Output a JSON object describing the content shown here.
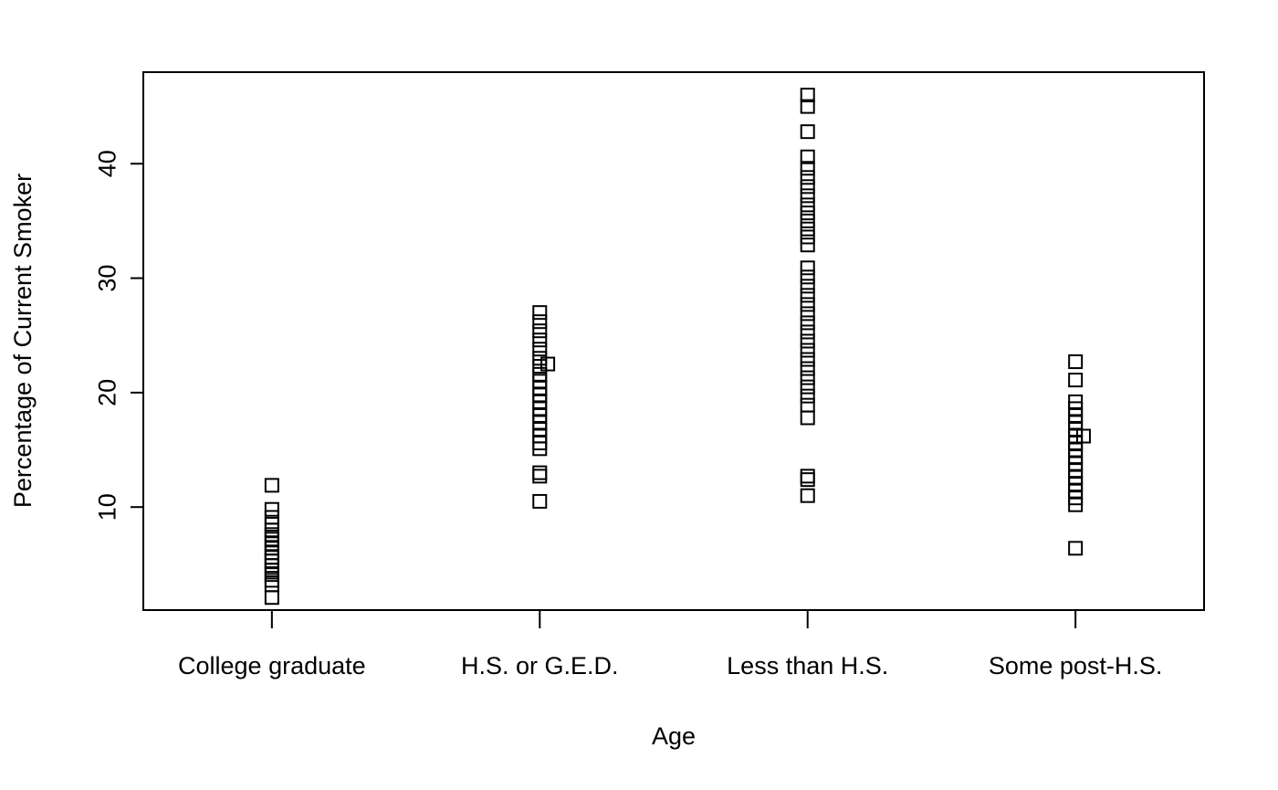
{
  "chart_data": {
    "type": "scatter",
    "xlabel": "Age",
    "ylabel": "Percentage of Current Smoker",
    "categories": [
      "College graduate",
      "H.S. or G.E.D.",
      "Less than H.S.",
      "Some post-H.S."
    ],
    "x_range": [
      0.52,
      4.48
    ],
    "ylim": [
      1.0,
      48.0
    ],
    "yticks": [
      10,
      20,
      30,
      40
    ],
    "grid": false,
    "legend": "none",
    "marker": "open-square",
    "point_color": "#000000",
    "points": [
      {
        "x": 1,
        "y": 2.1
      },
      {
        "x": 1,
        "y": 3.2
      },
      {
        "x": 1,
        "y": 3.6
      },
      {
        "x": 1,
        "y": 4.1
      },
      {
        "x": 1,
        "y": 4.5
      },
      {
        "x": 1,
        "y": 4.9
      },
      {
        "x": 1,
        "y": 5.3
      },
      {
        "x": 1,
        "y": 5.6
      },
      {
        "x": 1,
        "y": 6.0
      },
      {
        "x": 1,
        "y": 6.4
      },
      {
        "x": 1,
        "y": 6.8
      },
      {
        "x": 1,
        "y": 7.2
      },
      {
        "x": 1,
        "y": 7.6
      },
      {
        "x": 1,
        "y": 8.0
      },
      {
        "x": 1,
        "y": 8.5
      },
      {
        "x": 1,
        "y": 9.1
      },
      {
        "x": 1,
        "y": 9.8
      },
      {
        "x": 1,
        "y": 11.9
      },
      {
        "x": 2,
        "y": 10.5
      },
      {
        "x": 2,
        "y": 12.7
      },
      {
        "x": 2,
        "y": 13.0
      },
      {
        "x": 2,
        "y": 15.1
      },
      {
        "x": 2,
        "y": 15.6
      },
      {
        "x": 2,
        "y": 16.2
      },
      {
        "x": 2,
        "y": 16.8
      },
      {
        "x": 2,
        "y": 17.4
      },
      {
        "x": 2,
        "y": 18.0
      },
      {
        "x": 2,
        "y": 18.6
      },
      {
        "x": 2,
        "y": 19.2
      },
      {
        "x": 2,
        "y": 19.8
      },
      {
        "x": 2,
        "y": 20.4
      },
      {
        "x": 2,
        "y": 21.0
      },
      {
        "x": 2,
        "y": 21.6
      },
      {
        "x": 2,
        "y": 22.3
      },
      {
        "x": 2,
        "y": 23.0
      },
      {
        "x": 2,
        "y": 23.8
      },
      {
        "x": 2,
        "y": 24.6
      },
      {
        "x": 2,
        "y": 25.4
      },
      {
        "x": 2,
        "y": 26.2
      },
      {
        "x": 2,
        "y": 27.0
      },
      {
        "x": 2.03,
        "y": 22.5
      },
      {
        "x": 3,
        "y": 11.0
      },
      {
        "x": 3,
        "y": 12.4
      },
      {
        "x": 3,
        "y": 12.7
      },
      {
        "x": 3,
        "y": 17.8
      },
      {
        "x": 3,
        "y": 18.9
      },
      {
        "x": 3,
        "y": 19.7
      },
      {
        "x": 3,
        "y": 20.5
      },
      {
        "x": 3,
        "y": 21.3
      },
      {
        "x": 3,
        "y": 22.1
      },
      {
        "x": 3,
        "y": 22.9
      },
      {
        "x": 3,
        "y": 23.7
      },
      {
        "x": 3,
        "y": 24.5
      },
      {
        "x": 3,
        "y": 25.3
      },
      {
        "x": 3,
        "y": 26.1
      },
      {
        "x": 3,
        "y": 26.9
      },
      {
        "x": 3,
        "y": 27.7
      },
      {
        "x": 3,
        "y": 28.5
      },
      {
        "x": 3,
        "y": 29.3
      },
      {
        "x": 3,
        "y": 30.1
      },
      {
        "x": 3,
        "y": 30.9
      },
      {
        "x": 3,
        "y": 32.9
      },
      {
        "x": 3,
        "y": 33.6
      },
      {
        "x": 3,
        "y": 34.3
      },
      {
        "x": 3,
        "y": 35.0
      },
      {
        "x": 3,
        "y": 35.7
      },
      {
        "x": 3,
        "y": 36.4
      },
      {
        "x": 3,
        "y": 37.2
      },
      {
        "x": 3,
        "y": 38.0
      },
      {
        "x": 3,
        "y": 38.8
      },
      {
        "x": 3,
        "y": 39.6
      },
      {
        "x": 3,
        "y": 40.6
      },
      {
        "x": 3,
        "y": 42.8
      },
      {
        "x": 3,
        "y": 45.0
      },
      {
        "x": 3,
        "y": 46.0
      },
      {
        "x": 4,
        "y": 6.4
      },
      {
        "x": 4,
        "y": 10.2
      },
      {
        "x": 4,
        "y": 10.8
      },
      {
        "x": 4,
        "y": 11.4
      },
      {
        "x": 4,
        "y": 12.0
      },
      {
        "x": 4,
        "y": 12.6
      },
      {
        "x": 4,
        "y": 13.2
      },
      {
        "x": 4,
        "y": 13.8
      },
      {
        "x": 4,
        "y": 14.4
      },
      {
        "x": 4,
        "y": 15.0
      },
      {
        "x": 4,
        "y": 15.6
      },
      {
        "x": 4,
        "y": 16.2
      },
      {
        "x": 4,
        "y": 16.8
      },
      {
        "x": 4,
        "y": 17.4
      },
      {
        "x": 4,
        "y": 18.0
      },
      {
        "x": 4,
        "y": 18.6
      },
      {
        "x": 4,
        "y": 19.2
      },
      {
        "x": 4,
        "y": 21.1
      },
      {
        "x": 4,
        "y": 22.7
      },
      {
        "x": 4.03,
        "y": 16.2
      }
    ]
  }
}
